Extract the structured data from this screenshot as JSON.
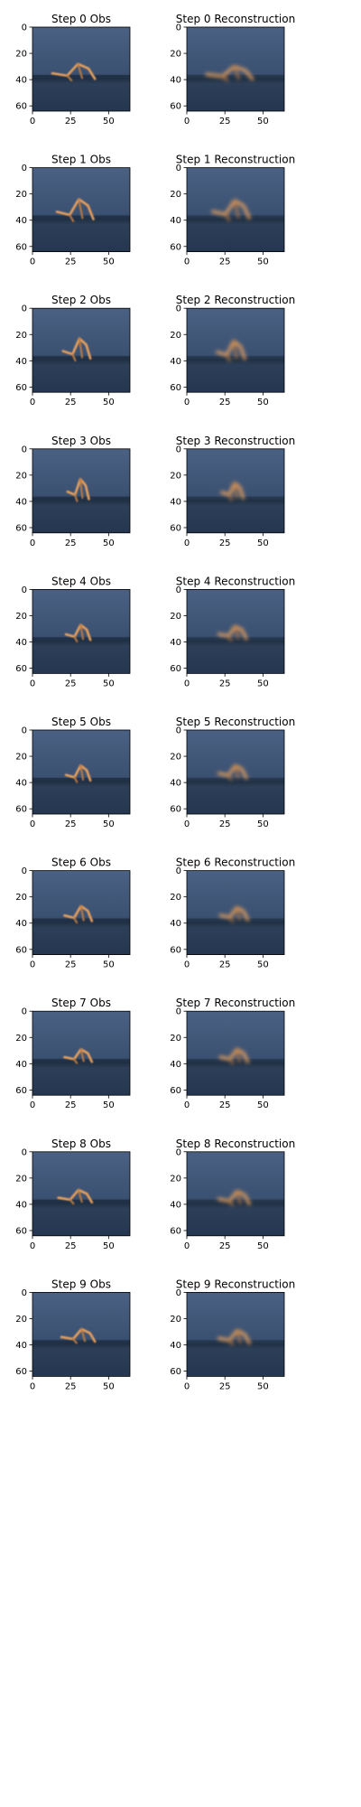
{
  "chart_data": {
    "type": "image-grid",
    "rows": 10,
    "columns": 2,
    "image_size": 64,
    "xlim": [
      0,
      64
    ],
    "ylim": [
      64,
      0
    ],
    "x_ticks": [
      0,
      25,
      50
    ],
    "y_ticks": [
      0,
      20,
      40,
      60
    ],
    "panels": [
      {
        "step": 0,
        "obs_title": "Step 0 Obs",
        "recon_title": "Step 0 Reconstruction",
        "figure_obs": {
          "cx": 27,
          "cy": 34,
          "w": 28,
          "h": 12
        },
        "figure_recon": {
          "cx": 28,
          "cy": 35,
          "w": 30,
          "h": 10
        }
      },
      {
        "step": 1,
        "obs_title": "Step 1 Obs",
        "recon_title": "Step 1 Reconstruction",
        "figure_obs": {
          "cx": 28,
          "cy": 32,
          "w": 24,
          "h": 16
        },
        "figure_recon": {
          "cx": 29,
          "cy": 32,
          "w": 24,
          "h": 14
        }
      },
      {
        "step": 2,
        "obs_title": "Step 2 Obs",
        "recon_title": "Step 2 Reconstruction",
        "figure_obs": {
          "cx": 29,
          "cy": 31,
          "w": 18,
          "h": 16
        },
        "figure_recon": {
          "cx": 29,
          "cy": 32,
          "w": 18,
          "h": 14
        }
      },
      {
        "step": 3,
        "obs_title": "Step 3 Obs",
        "recon_title": "Step 3 Reconstruction",
        "figure_obs": {
          "cx": 30,
          "cy": 31,
          "w": 14,
          "h": 16
        },
        "figure_recon": {
          "cx": 30,
          "cy": 32,
          "w": 14,
          "h": 12
        }
      },
      {
        "step": 4,
        "obs_title": "Step 4 Obs",
        "recon_title": "Step 4 Reconstruction",
        "figure_obs": {
          "cx": 30,
          "cy": 33,
          "w": 16,
          "h": 12
        },
        "figure_recon": {
          "cx": 30,
          "cy": 33,
          "w": 18,
          "h": 10
        }
      },
      {
        "step": 5,
        "obs_title": "Step 5 Obs",
        "recon_title": "Step 5 Reconstruction",
        "figure_obs": {
          "cx": 30,
          "cy": 33,
          "w": 16,
          "h": 12
        },
        "figure_recon": {
          "cx": 30,
          "cy": 32,
          "w": 18,
          "h": 10
        }
      },
      {
        "step": 6,
        "obs_title": "Step 6 Obs",
        "recon_title": "Step 6 Reconstruction",
        "figure_obs": {
          "cx": 30,
          "cy": 33,
          "w": 18,
          "h": 12
        },
        "figure_recon": {
          "cx": 31,
          "cy": 33,
          "w": 18,
          "h": 10
        }
      },
      {
        "step": 7,
        "obs_title": "Step 7 Obs",
        "recon_title": "Step 7 Reconstruction",
        "figure_obs": {
          "cx": 30,
          "cy": 34,
          "w": 18,
          "h": 10
        },
        "figure_recon": {
          "cx": 31,
          "cy": 34,
          "w": 18,
          "h": 10
        }
      },
      {
        "step": 8,
        "obs_title": "Step 8 Obs",
        "recon_title": "Step 8 Reconstruction",
        "figure_obs": {
          "cx": 28,
          "cy": 34,
          "w": 22,
          "h": 10
        },
        "figure_recon": {
          "cx": 31,
          "cy": 35,
          "w": 20,
          "h": 10
        }
      },
      {
        "step": 9,
        "obs_title": "Step 9 Obs",
        "recon_title": "Step 9 Reconstruction",
        "figure_obs": {
          "cx": 30,
          "cy": 33,
          "w": 22,
          "h": 10
        },
        "figure_recon": {
          "cx": 31,
          "cy": 34,
          "w": 20,
          "h": 10
        }
      }
    ]
  },
  "colors": {
    "sky_top": "#41587a",
    "sky_bottom": "#2f4563",
    "horizon": "#1f2f44",
    "floor": "#2a3a52",
    "figure": "#e8a05c",
    "figure_dark": "#b97a44",
    "axis": "#000000"
  }
}
